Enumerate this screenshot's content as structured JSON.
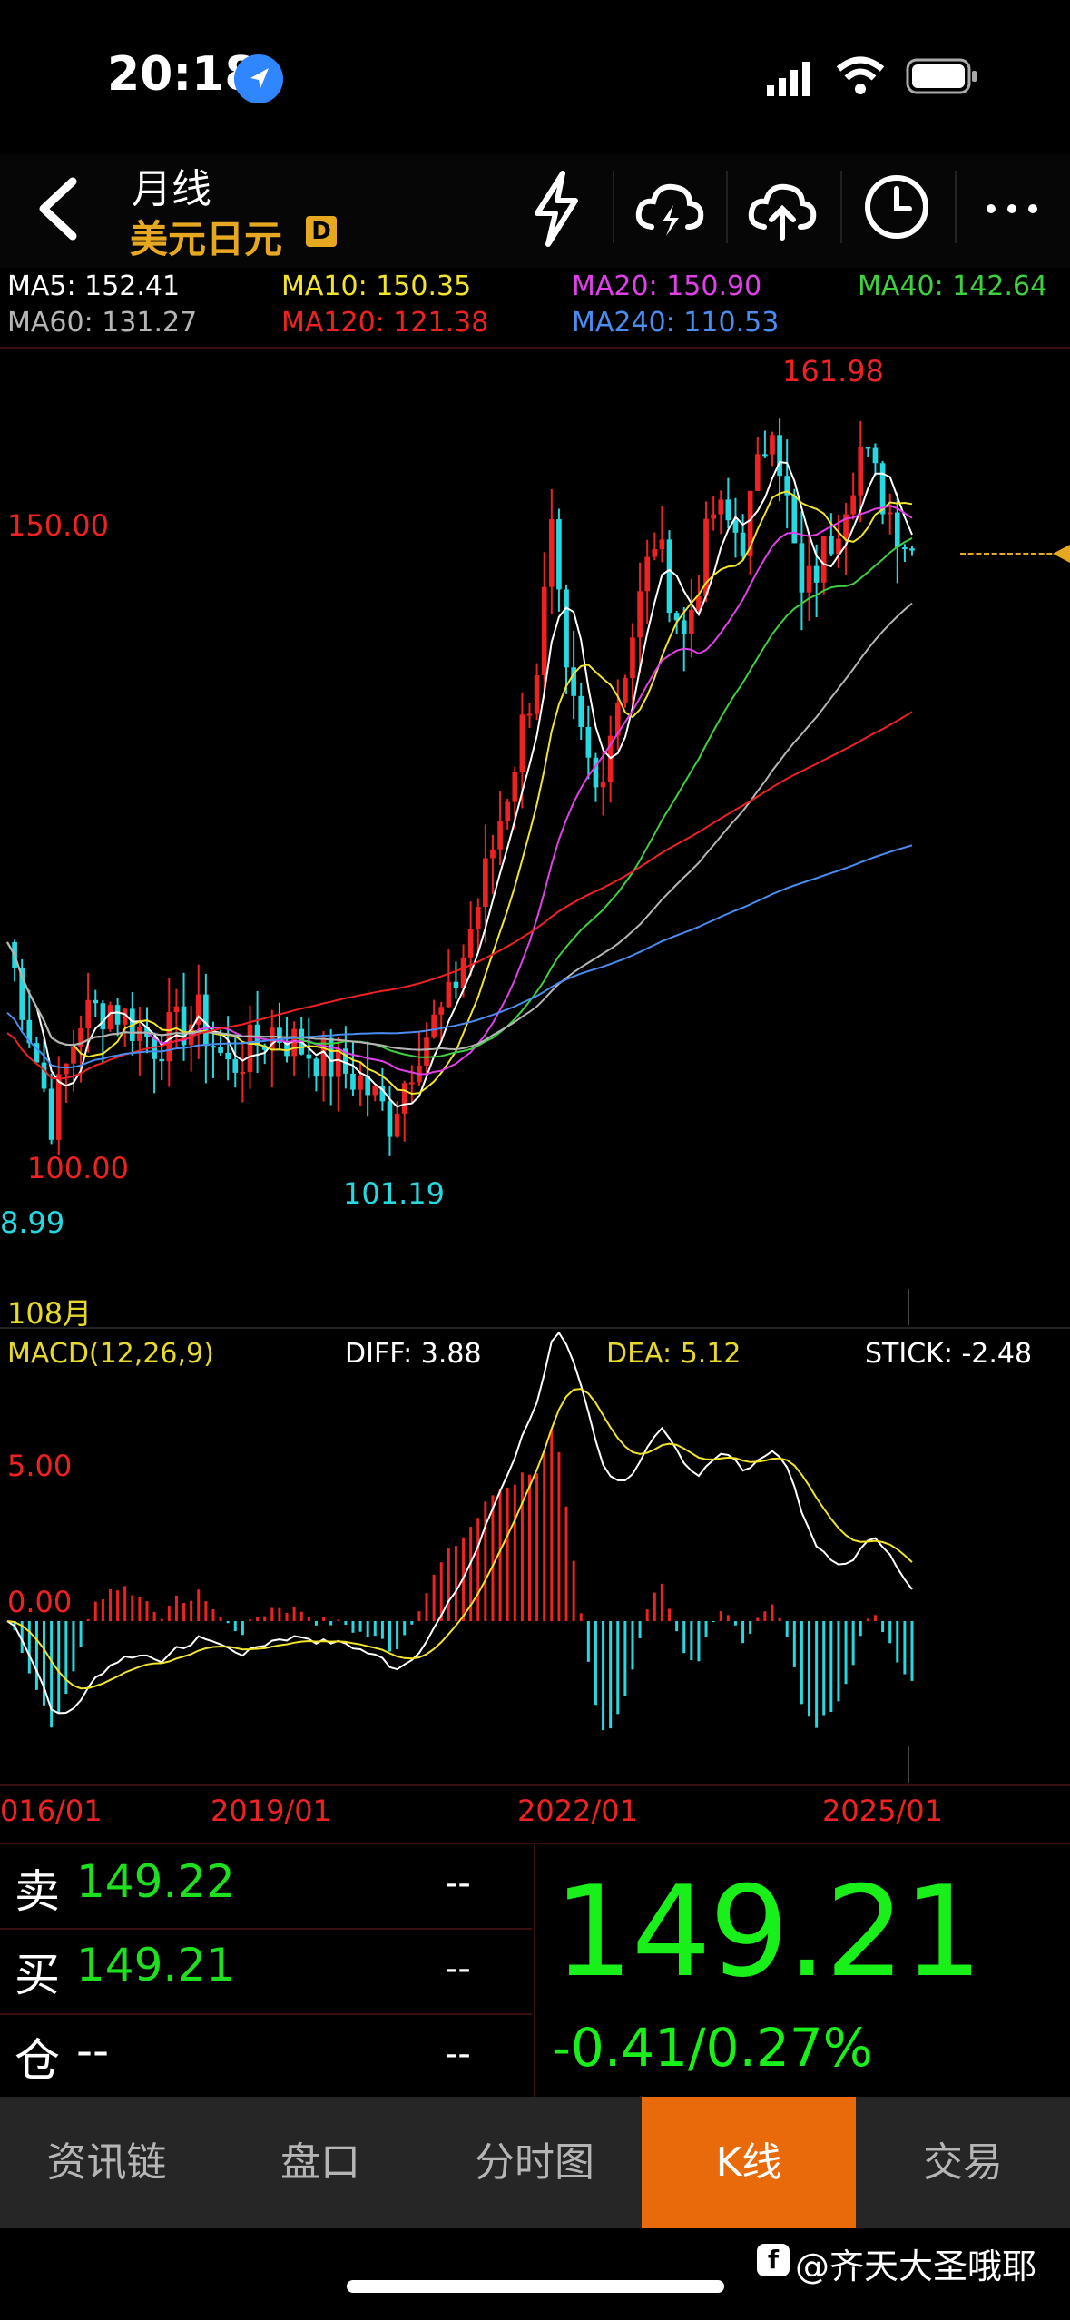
{
  "status_bar": {
    "time": "20:18"
  },
  "header": {
    "back_icon": "chevron-left-icon",
    "title": "月线",
    "subtitle": "美元日元",
    "badge": "D",
    "actions": [
      "lightning-icon",
      "cloud-lightning-icon",
      "cloud-upload-icon",
      "clock-icon",
      "more-icon"
    ]
  },
  "ma_legend": [
    {
      "label": "MA5: 152.41",
      "color": "#ffffff"
    },
    {
      "label": "MA10: 150.35",
      "color": "#f2e32c"
    },
    {
      "label": "MA20: 150.90",
      "color": "#e040e8"
    },
    {
      "label": "MA40: 142.64",
      "color": "#3fcf3f"
    },
    {
      "label": "MA60: 131.27",
      "color": "#b5b5b5"
    },
    {
      "label": "MA120: 121.38",
      "color": "#ee2222"
    },
    {
      "label": "MA240: 110.53",
      "color": "#4a8cf0"
    }
  ],
  "kline": {
    "high_label": "161.98",
    "price_axis_label": "150.00",
    "low_axis_label": "100.00",
    "left_low_label": "8.99",
    "low_mark_label": "101.19",
    "bottom_label": "108月"
  },
  "macd": {
    "title": "MACD(12,26,9)",
    "diff": "DIFF: 3.88",
    "dea": "DEA: 5.12",
    "stick": "STICK: -2.48",
    "axis_top": "5.00",
    "axis_zero": "0.00"
  },
  "x_axis": [
    "016/01",
    "2019/01",
    "2022/01",
    "2025/01"
  ],
  "quote": {
    "sell_label": "卖",
    "sell_value": "149.22",
    "sell_qty": "--",
    "buy_label": "买",
    "buy_value": "149.21",
    "buy_qty": "--",
    "pos_label": "仓",
    "pos_value": "--",
    "pos_qty": "--",
    "price": "149.21",
    "change": "-0.41/0.27%"
  },
  "nav": {
    "items": [
      "资讯链",
      "盘口",
      "分时图",
      "K线",
      "交易"
    ],
    "active": "K线"
  },
  "watermark": "@齐天大圣哦耶",
  "colors": {
    "up": "#ee2222",
    "down": "#26d8e0",
    "accent": "#e96a0a",
    "price": "#19ef19"
  }
}
